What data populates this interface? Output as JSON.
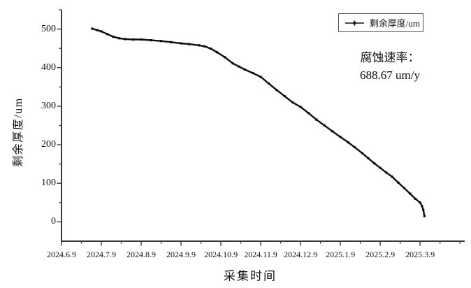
{
  "chart_data": {
    "type": "line",
    "title": "",
    "xlabel": "采集时间",
    "ylabel": "剩余厚度/um",
    "grid": false,
    "legend": {
      "position": "top-right",
      "entries": [
        "剩余厚度/um"
      ]
    },
    "annotation": {
      "line1": "腐蚀速率：",
      "line2": "688.67 um/y"
    },
    "x_tick_labels": [
      "2024.6.9",
      "2024.7.9",
      "2024.8.9",
      "2024.9.9",
      "2024.10.9",
      "2024.11.9",
      "2024.12.9",
      "2025.1.9",
      "2025.2.9",
      "2025.3.9"
    ],
    "x_minor_ticks_months": [
      0.5,
      1.5,
      2.5,
      3.5,
      4.5,
      5.5,
      6.5,
      7.5,
      8.5,
      9.5,
      10
    ],
    "y_tick_values": [
      0,
      100,
      200,
      300,
      400,
      500
    ],
    "y_minor_tick_values": [
      50,
      150,
      250,
      350,
      450,
      550
    ],
    "x_range_months_after_first_tick": [
      0,
      10.12
    ],
    "y_range": [
      -50,
      550
    ],
    "series": [
      {
        "name": "剩余厚度/um",
        "x_unit": "months after 2024.6.9",
        "y_unit": "um",
        "points": [
          [
            0.77,
            501
          ],
          [
            0.9,
            497
          ],
          [
            1.0,
            494
          ],
          [
            1.15,
            487
          ],
          [
            1.3,
            480
          ],
          [
            1.45,
            476
          ],
          [
            1.6,
            474
          ],
          [
            1.8,
            473
          ],
          [
            2.0,
            473
          ],
          [
            2.25,
            471
          ],
          [
            2.5,
            469
          ],
          [
            2.75,
            466
          ],
          [
            3.0,
            463
          ],
          [
            3.2,
            461
          ],
          [
            3.45,
            458
          ],
          [
            3.6,
            455
          ],
          [
            3.75,
            449
          ],
          [
            3.9,
            440
          ],
          [
            4.1,
            427
          ],
          [
            4.3,
            411
          ],
          [
            4.45,
            403
          ],
          [
            4.6,
            395
          ],
          [
            4.8,
            386
          ],
          [
            5.0,
            376
          ],
          [
            5.2,
            359
          ],
          [
            5.4,
            342
          ],
          [
            5.6,
            326
          ],
          [
            5.8,
            310
          ],
          [
            6.0,
            298
          ],
          [
            6.2,
            282
          ],
          [
            6.4,
            265
          ],
          [
            6.6,
            250
          ],
          [
            6.8,
            235
          ],
          [
            7.0,
            220
          ],
          [
            7.2,
            206
          ],
          [
            7.35,
            194
          ],
          [
            7.55,
            178
          ],
          [
            7.7,
            165
          ],
          [
            7.85,
            152
          ],
          [
            8.0,
            140
          ],
          [
            8.15,
            128
          ],
          [
            8.3,
            117
          ],
          [
            8.45,
            102
          ],
          [
            8.6,
            88
          ],
          [
            8.75,
            73
          ],
          [
            8.88,
            60
          ],
          [
            9.0,
            50
          ],
          [
            9.05,
            41
          ],
          [
            9.08,
            31
          ],
          [
            9.11,
            15
          ]
        ]
      }
    ],
    "colors": {
      "line": "#0d0d0d",
      "axis": "#3a3a3a",
      "text": "#111111",
      "background": "#ffffff",
      "legend_border": "#4f4f4f"
    }
  }
}
